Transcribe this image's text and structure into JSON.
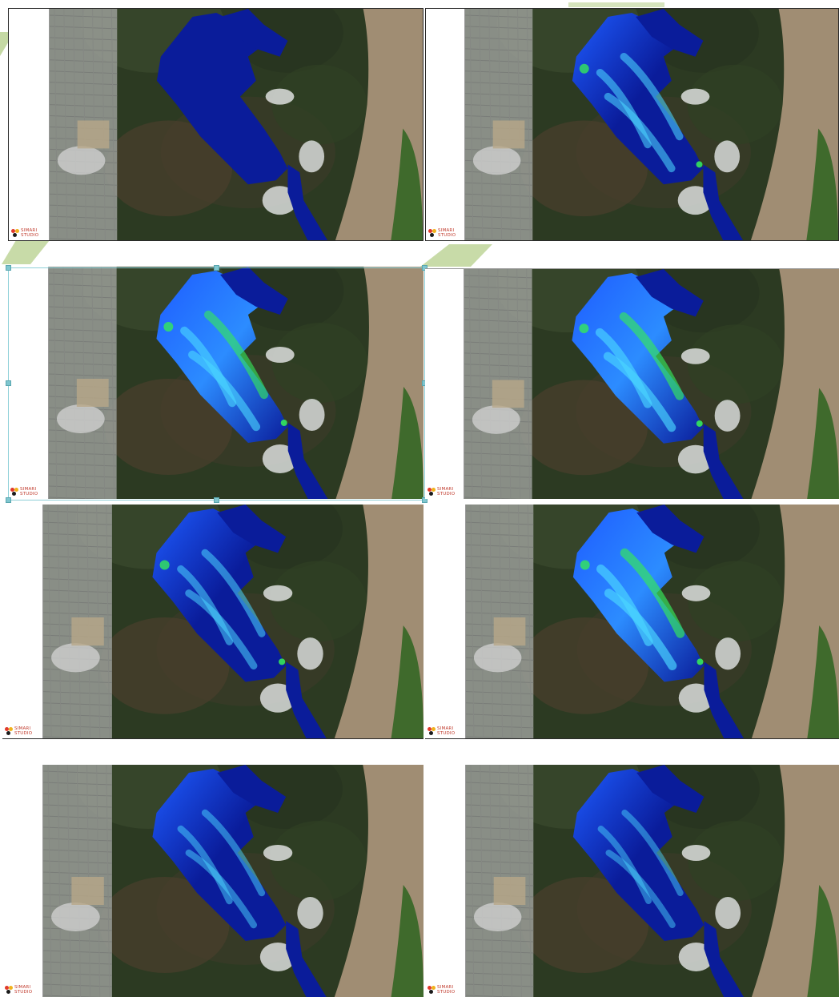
{
  "colors": {
    "vegetation": "#2c3a22",
    "river": "#a08d73",
    "urban": "#9a9d98",
    "selection": "#7fc6cf",
    "depth_low": "#0a1c9a",
    "depth_mid": "#1e5cff",
    "depth_high": "#35e85a"
  },
  "panels": [
    {
      "id": "p1",
      "logo": "SIMARI|STUDIO",
      "depth_level": 0.0
    },
    {
      "id": "p2",
      "logo": "SIMARI|STUDIO",
      "depth_level": 0.45
    },
    {
      "id": "p3",
      "logo": "SIMARI|STUDIO",
      "depth_level": 0.55
    },
    {
      "id": "p4",
      "logo": "SIMARI|STUDIO",
      "depth_level": 0.6
    },
    {
      "id": "p5",
      "logo": "SIMARI|STUDIO",
      "depth_level": 0.4
    },
    {
      "id": "p6",
      "logo": "SIMARI|STUDIO",
      "depth_level": 0.65
    },
    {
      "id": "p7",
      "logo": "SIMARI|STUDIO",
      "depth_level": 0.3
    },
    {
      "id": "p8",
      "logo": "SIMARI|STUDIO",
      "depth_level": 0.25
    }
  ]
}
